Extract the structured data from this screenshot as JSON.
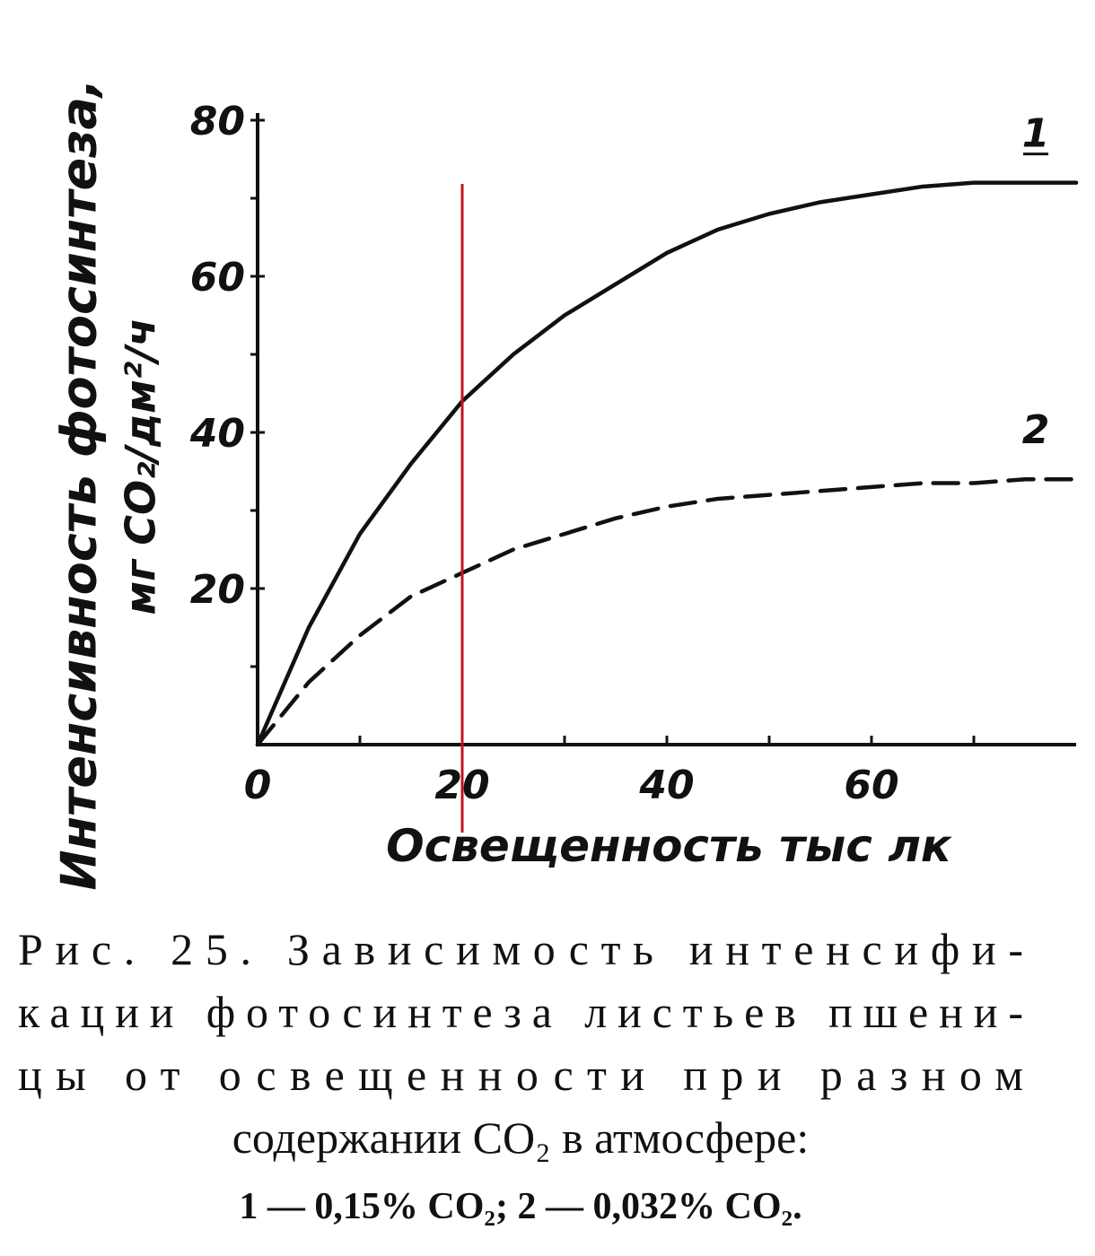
{
  "chart_data": {
    "type": "line",
    "y_label": [
      "Интенсивность фотосинтеза,",
      "мг CO₂/дм²/ч"
    ],
    "x_label": "Освещенность тыс лк",
    "caption": [
      "Рис. 25. Зависимость интенсифи-",
      "кации фотосинтеза листьев пшени-",
      "цы от освещенности при разном",
      "содержании CO₂ в атмосфере:",
      "1 — 0,15% CO₂; 2 — 0,032% CO₂."
    ],
    "x": [
      0,
      5,
      10,
      15,
      20,
      25,
      30,
      35,
      40,
      45,
      50,
      55,
      60,
      65,
      70,
      75,
      80
    ],
    "series": [
      {
        "name": "1",
        "color": "#111111",
        "dashed": false,
        "values": [
          0,
          15,
          27,
          36,
          44,
          50,
          55,
          59,
          63,
          66,
          68,
          69.5,
          70.5,
          71.5,
          72,
          72,
          72
        ]
      },
      {
        "name": "2",
        "color": "#111111",
        "dashed": true,
        "values": [
          0,
          8,
          14,
          19,
          22,
          25,
          27,
          29,
          30.5,
          31.5,
          32,
          32.5,
          33,
          33.5,
          33.5,
          34,
          34
        ]
      }
    ],
    "xlim": [
      0,
      80
    ],
    "ylim": [
      0,
      80
    ],
    "xticks": [
      0,
      20,
      40,
      60
    ],
    "yticks": [
      20,
      40,
      60,
      80
    ],
    "xminor": [
      10,
      30,
      50,
      70
    ],
    "yminor": [
      10,
      30,
      50,
      70
    ],
    "marker_line": {
      "x": 20,
      "color": "#c0161b"
    }
  }
}
